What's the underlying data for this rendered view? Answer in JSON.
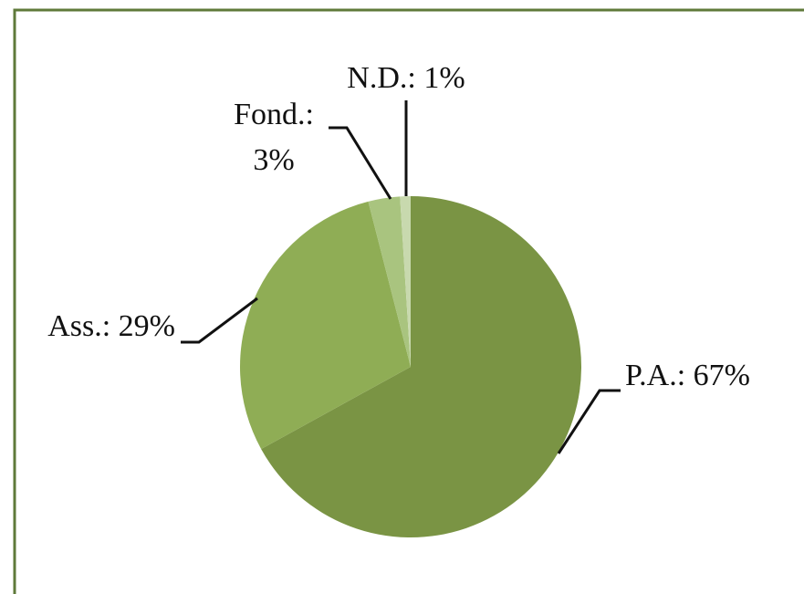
{
  "chart_data": {
    "type": "pie",
    "values": [
      67,
      29,
      3,
      1
    ],
    "value_labels": [
      "P.A.: 67%",
      "Ass.: 29%",
      "Fond.: 3%",
      "N.D.: 1%"
    ],
    "colors": [
      "#7a9444",
      "#8fad55",
      "#a9c47f",
      "#c8d9ae"
    ]
  }
}
